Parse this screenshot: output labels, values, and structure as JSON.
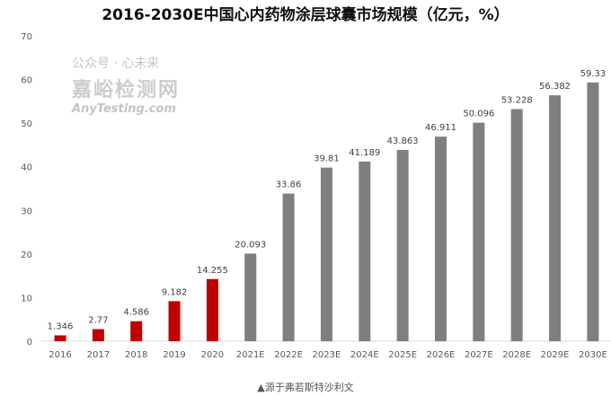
{
  "chart_data": {
    "type": "bar",
    "title": "2016-2030E中国心内药物涂层球囊市场规模（亿元，%）",
    "xlabel": "",
    "ylabel": "",
    "ylim": [
      0,
      70
    ],
    "yticks": [
      0,
      10,
      20,
      30,
      40,
      50,
      60,
      70
    ],
    "grid": false,
    "categories": [
      "2016",
      "2017",
      "2018",
      "2019",
      "2020",
      "2021E",
      "2022E",
      "2023E",
      "2024E",
      "2025E",
      "2026E",
      "2027E",
      "2028E",
      "2029E",
      "2030E"
    ],
    "values": [
      1.346,
      2.77,
      4.586,
      9.182,
      14.255,
      20.093,
      33.86,
      39.81,
      41.189,
      43.863,
      46.911,
      50.096,
      53.228,
      56.382,
      59.33
    ],
    "data_labels": [
      "1.346",
      "2.77",
      "4.586",
      "9.182",
      "14.255",
      "20.093",
      "33.86",
      "39.81",
      "41.189",
      "43.863",
      "46.911",
      "50.096",
      "53.228",
      "56.382",
      "59.33"
    ],
    "colors": {
      "actual": "#c00000",
      "forecast": "#7f7f7f"
    },
    "actual_count": 5
  },
  "source": "▲源于弗若斯特沙利文",
  "watermark": {
    "line1": "公众号 · 心未来",
    "line2": "嘉峪检测网",
    "line3": "AnyTesting.com"
  }
}
